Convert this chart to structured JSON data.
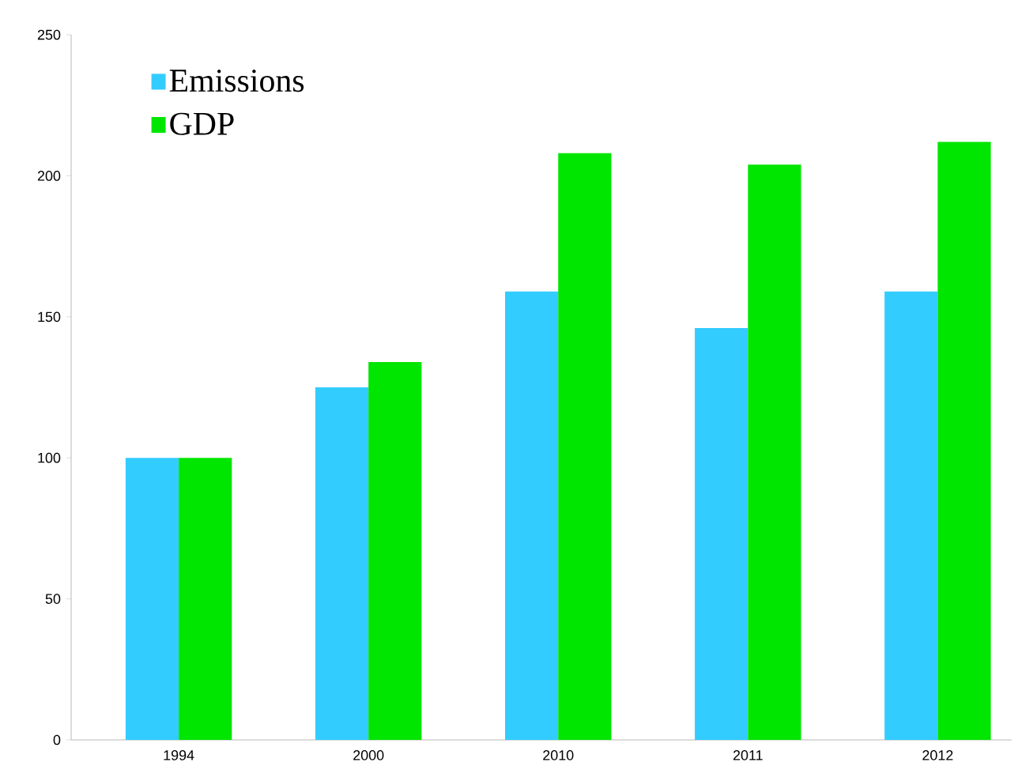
{
  "chart_data": {
    "type": "bar",
    "categories": [
      "1994",
      "2000",
      "2010",
      "2011",
      "2012"
    ],
    "series": [
      {
        "name": "Emissions",
        "color": "#33ccff",
        "values": [
          100,
          125,
          159,
          146,
          159
        ]
      },
      {
        "name": "GDP",
        "color": "#00e600",
        "values": [
          100,
          134,
          208,
          204,
          212
        ]
      }
    ],
    "ylim": [
      0,
      250
    ],
    "yticks": [
      0,
      50,
      100,
      150,
      200,
      250
    ],
    "legend": "top left",
    "grid": false
  }
}
